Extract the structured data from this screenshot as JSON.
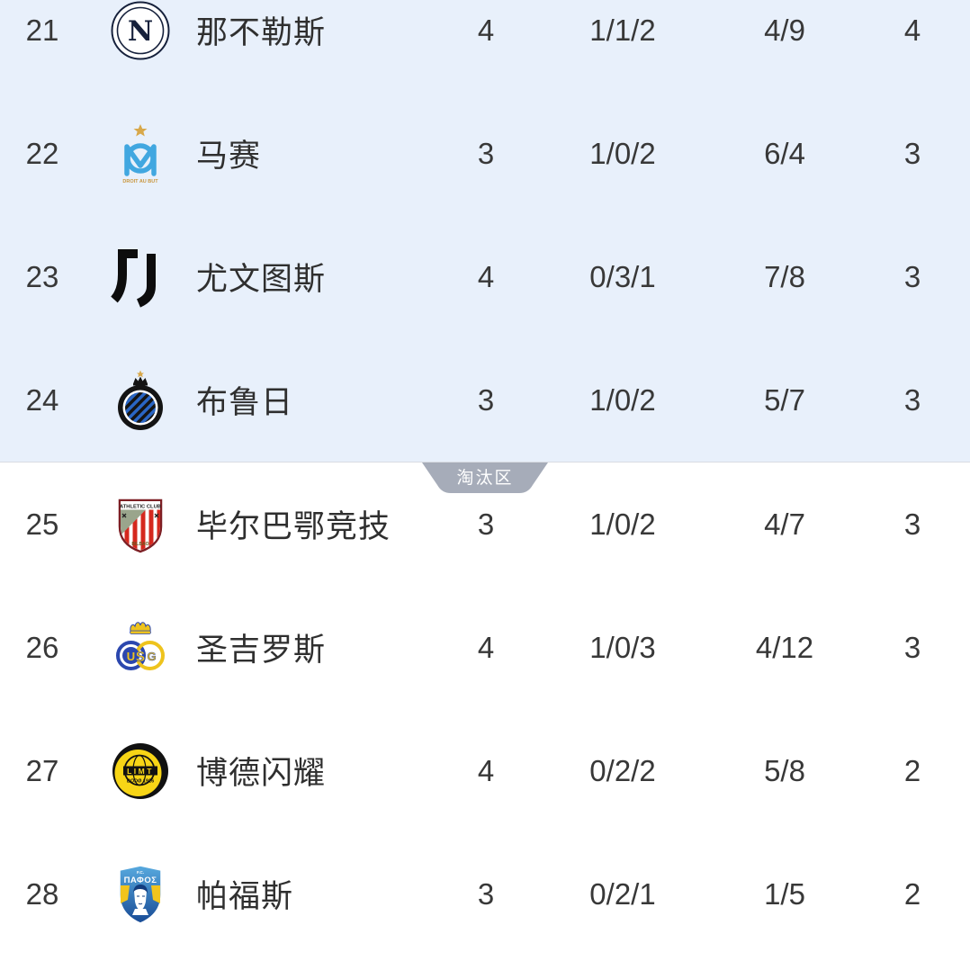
{
  "colors": {
    "playoff_zone_bg": "#e8f0fb",
    "elimination_badge_bg": "#a6acb9",
    "badge_text": "#ffffff",
    "divider_line": "#d9dce2",
    "row_text": "#383838",
    "team_name_text": "#2f2f2f"
  },
  "zones": {
    "playoff": {
      "rows": [
        {
          "rank": "21",
          "team": "那不勒斯",
          "crest": "napoli-crest",
          "crest_texts": [
            "N"
          ],
          "played": "4",
          "win_draw_loss": "1/1/2",
          "goals_for_against": "4/9",
          "points": "4"
        },
        {
          "rank": "22",
          "team": "马赛",
          "crest": "marseille-crest",
          "crest_texts": [
            "DROIT AU BUT"
          ],
          "played": "3",
          "win_draw_loss": "1/0/2",
          "goals_for_against": "6/4",
          "points": "3"
        },
        {
          "rank": "23",
          "team": "尤文图斯",
          "crest": "juventus-crest",
          "crest_texts": [],
          "played": "4",
          "win_draw_loss": "0/3/1",
          "goals_for_against": "7/8",
          "points": "3"
        },
        {
          "rank": "24",
          "team": "布鲁日",
          "crest": "club-brugge-crest",
          "crest_texts": [],
          "played": "3",
          "win_draw_loss": "1/0/2",
          "goals_for_against": "5/7",
          "points": "3"
        }
      ]
    },
    "elimination": {
      "badge_label": "淘汰区",
      "rows": [
        {
          "rank": "25",
          "team": "毕尔巴鄂竞技",
          "crest": "athletic-club-crest",
          "crest_texts": [
            "ATHLETIC CLUB",
            "BILBAO"
          ],
          "played": "3",
          "win_draw_loss": "1/0/2",
          "goals_for_against": "4/7",
          "points": "3"
        },
        {
          "rank": "26",
          "team": "圣吉罗斯",
          "crest": "union-sg-crest",
          "crest_texts": [
            "U",
            "S",
            "G"
          ],
          "played": "4",
          "win_draw_loss": "1/0/3",
          "goals_for_against": "4/12",
          "points": "3"
        },
        {
          "rank": "27",
          "team": "博德闪耀",
          "crest": "bodo-glimt-crest",
          "crest_texts": [
            "LIMT",
            "BODØ 1916"
          ],
          "played": "4",
          "win_draw_loss": "0/2/2",
          "goals_for_against": "5/8",
          "points": "2"
        },
        {
          "rank": "28",
          "team": "帕福斯",
          "crest": "pafos-crest",
          "crest_texts": [
            "F.C.",
            "ΠΑΦΟΣ"
          ],
          "played": "3",
          "win_draw_loss": "0/2/1",
          "goals_for_against": "1/5",
          "points": "2"
        }
      ]
    }
  }
}
